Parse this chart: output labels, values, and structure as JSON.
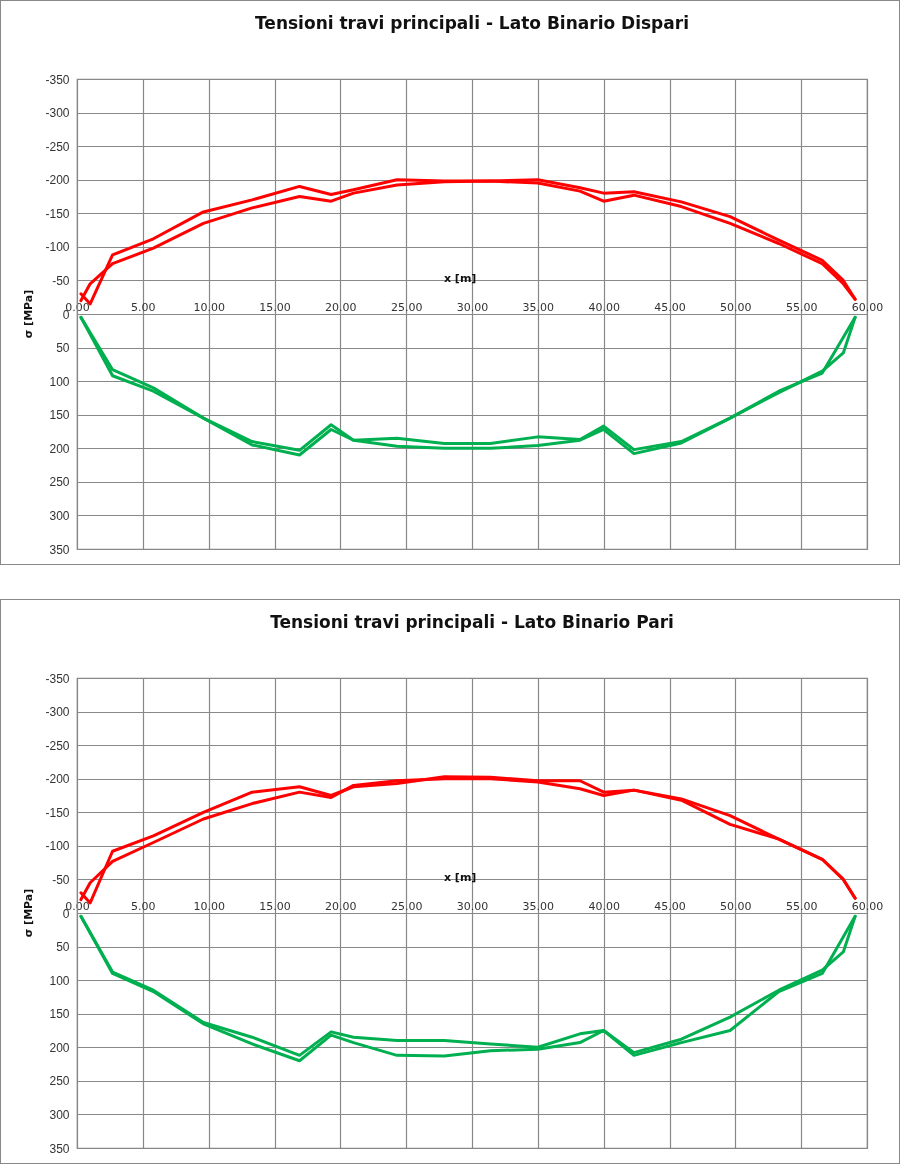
{
  "chart_data": [
    {
      "type": "line",
      "title": "Tensioni travi principali - Lato Binario Dispari",
      "xlabel": "x [m]",
      "ylabel": "σ [MPa]",
      "xlim": [
        0,
        60
      ],
      "xticks": [
        {
          "value": 0,
          "label": "0.00"
        },
        {
          "value": 5,
          "label": "5.00"
        },
        {
          "value": 10,
          "label": "10.00"
        },
        {
          "value": 15,
          "label": "15.00"
        },
        {
          "value": 20,
          "label": "20.00"
        },
        {
          "value": 25,
          "label": "25.00"
        },
        {
          "value": 30,
          "label": "30.00"
        },
        {
          "value": 35,
          "label": "35.00"
        },
        {
          "value": 40,
          "label": "40.00"
        },
        {
          "value": 45,
          "label": "45.00"
        },
        {
          "value": 50,
          "label": "50.00"
        },
        {
          "value": 55,
          "label": "55.00"
        },
        {
          "value": 60,
          "label": "60.00"
        }
      ],
      "ylim": [
        350,
        -350
      ],
      "yticks": [
        -350,
        -300,
        -250,
        -200,
        -150,
        -100,
        -50,
        0,
        50,
        100,
        150,
        200,
        250,
        300,
        350
      ],
      "grid": true,
      "marker": "none",
      "line_style": "solid",
      "series": [
        {
          "color": "#ff0000",
          "x": [
            0.3,
            1.0,
            2.7,
            5.8,
            9.6,
            13.3,
            16.9,
            19.3,
            21.0,
            24.3,
            27.9,
            31.4,
            35.0,
            38.2,
            40.0,
            42.3,
            45.9,
            49.6,
            53.3,
            56.6,
            58.2,
            59.1
          ],
          "values": [
            -30,
            -15,
            -88,
            -112,
            -152,
            -170,
            -190,
            -178,
            -185,
            -200,
            -198,
            -198,
            -200,
            -188,
            -180,
            -182,
            -167,
            -145,
            -110,
            -80,
            -50,
            -22
          ]
        },
        {
          "color": "#ff0000",
          "x": [
            0.3,
            1.0,
            2.7,
            5.8,
            9.6,
            13.3,
            16.9,
            19.3,
            21.0,
            24.3,
            27.9,
            31.4,
            35.0,
            38.2,
            40.0,
            42.3,
            45.9,
            49.6,
            53.3,
            56.6,
            58.2,
            59.1
          ],
          "values": [
            -20,
            -45,
            -75,
            -98,
            -135,
            -158,
            -175,
            -168,
            -180,
            -192,
            -197,
            -198,
            -195,
            -183,
            -168,
            -177,
            -160,
            -135,
            -105,
            -75,
            -45,
            -22
          ]
        },
        {
          "color": "#00b050",
          "x": [
            0.3,
            2.7,
            5.8,
            9.6,
            13.3,
            16.9,
            19.3,
            21.0,
            24.3,
            27.9,
            31.4,
            35.0,
            38.2,
            40.0,
            42.3,
            45.9,
            49.6,
            53.3,
            56.6,
            58.2,
            59.1
          ],
          "values": [
            5,
            83,
            110,
            155,
            190,
            203,
            165,
            188,
            185,
            193,
            193,
            183,
            187,
            167,
            202,
            190,
            155,
            117,
            85,
            58,
            5
          ]
        },
        {
          "color": "#00b050",
          "x": [
            0.3,
            2.7,
            5.8,
            9.6,
            13.3,
            16.9,
            19.3,
            21.0,
            24.3,
            27.9,
            31.4,
            35.0,
            38.2,
            40.0,
            42.3,
            45.9,
            49.6,
            53.3,
            56.6,
            59.1
          ],
          "values": [
            5,
            92,
            115,
            155,
            195,
            210,
            172,
            188,
            197,
            200,
            200,
            196,
            188,
            172,
            208,
            192,
            155,
            115,
            88,
            5
          ]
        }
      ]
    },
    {
      "type": "line",
      "title": "Tensioni travi principali - Lato Binario Pari",
      "xlabel": "x [m]",
      "ylabel": "σ [MPa]",
      "xlim": [
        0,
        60
      ],
      "xticks": [
        {
          "value": 0,
          "label": "0.00"
        },
        {
          "value": 5,
          "label": "5.00"
        },
        {
          "value": 10,
          "label": "10.00"
        },
        {
          "value": 15,
          "label": "15.00"
        },
        {
          "value": 20,
          "label": "20.00"
        },
        {
          "value": 25,
          "label": "25.00"
        },
        {
          "value": 30,
          "label": "30.00"
        },
        {
          "value": 35,
          "label": "35.00"
        },
        {
          "value": 40,
          "label": "40.00"
        },
        {
          "value": 45,
          "label": "45.00"
        },
        {
          "value": 50,
          "label": "50.00"
        },
        {
          "value": 55,
          "label": "55.00"
        },
        {
          "value": 60,
          "label": "60.00"
        }
      ],
      "ylim": [
        350,
        -350
      ],
      "yticks": [
        -350,
        -300,
        -250,
        -200,
        -150,
        -100,
        -50,
        0,
        50,
        100,
        150,
        200,
        250,
        300,
        350
      ],
      "grid": true,
      "marker": "none",
      "line_style": "solid",
      "series": [
        {
          "color": "#ff0000",
          "x": [
            0.3,
            1.0,
            2.7,
            5.8,
            9.6,
            13.3,
            16.9,
            19.3,
            21.0,
            24.3,
            27.9,
            31.4,
            35.0,
            38.2,
            40.0,
            42.3,
            45.9,
            49.6,
            53.3,
            56.6,
            58.2,
            59.1
          ],
          "values": [
            -30,
            -15,
            -92,
            -115,
            -150,
            -180,
            -188,
            -175,
            -188,
            -193,
            -203,
            -202,
            -197,
            -197,
            -180,
            -183,
            -170,
            -145,
            -110,
            -80,
            -50,
            -22
          ]
        },
        {
          "color": "#ff0000",
          "x": [
            0.3,
            1.0,
            2.7,
            5.8,
            9.6,
            13.3,
            16.9,
            19.3,
            21.0,
            24.3,
            27.9,
            31.4,
            35.0,
            38.2,
            40.0,
            42.3,
            45.9,
            49.6,
            53.3,
            56.6,
            58.2,
            59.1
          ],
          "values": [
            -20,
            -45,
            -77,
            -105,
            -140,
            -163,
            -180,
            -172,
            -190,
            -197,
            -200,
            -200,
            -195,
            -185,
            -175,
            -183,
            -168,
            -132,
            -110,
            -80,
            -50,
            -22
          ]
        },
        {
          "color": "#00b050",
          "x": [
            0.3,
            2.7,
            5.8,
            9.6,
            13.3,
            16.9,
            19.3,
            21.0,
            24.3,
            27.9,
            31.4,
            35.0,
            38.2,
            40.0,
            42.3,
            45.9,
            49.6,
            53.3,
            56.6,
            58.2,
            59.1
          ],
          "values": [
            5,
            88,
            115,
            163,
            185,
            212,
            177,
            185,
            190,
            190,
            195,
            200,
            180,
            175,
            208,
            188,
            155,
            115,
            85,
            58,
            5
          ]
        },
        {
          "color": "#00b050",
          "x": [
            0.3,
            2.7,
            5.8,
            9.6,
            13.3,
            16.9,
            19.3,
            21.0,
            24.3,
            27.9,
            31.4,
            35.0,
            38.2,
            40.0,
            42.3,
            45.9,
            49.6,
            53.3,
            56.6,
            59.1
          ],
          "values": [
            5,
            90,
            117,
            165,
            195,
            220,
            182,
            193,
            212,
            213,
            205,
            203,
            193,
            175,
            212,
            193,
            175,
            117,
            90,
            5
          ]
        }
      ]
    }
  ]
}
